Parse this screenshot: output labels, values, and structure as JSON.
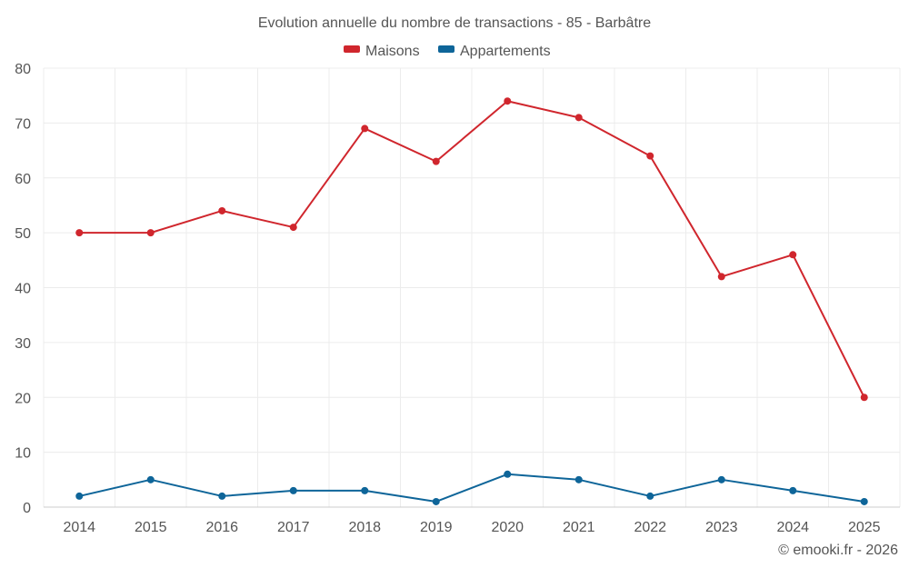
{
  "chart_data": {
    "type": "line",
    "title": "Evolution annuelle du nombre de transactions - 85 - Barbâtre",
    "categories": [
      "2014",
      "2015",
      "2016",
      "2017",
      "2018",
      "2019",
      "2020",
      "2021",
      "2022",
      "2023",
      "2024",
      "2025"
    ],
    "series": [
      {
        "name": "Maisons",
        "color": "#d0262d",
        "values": [
          50,
          50,
          54,
          51,
          69,
          63,
          74,
          71,
          64,
          42,
          46,
          20
        ]
      },
      {
        "name": "Appartements",
        "color": "#0e6599",
        "values": [
          2,
          5,
          2,
          3,
          3,
          1,
          6,
          5,
          2,
          5,
          3,
          1
        ]
      }
    ],
    "yticks": [
      "0",
      "10",
      "20",
      "30",
      "40",
      "50",
      "60",
      "70",
      "80"
    ],
    "ylim": [
      0,
      80
    ],
    "grid": true,
    "legend": "top-center",
    "credit": "© emooki.fr - 2026"
  }
}
